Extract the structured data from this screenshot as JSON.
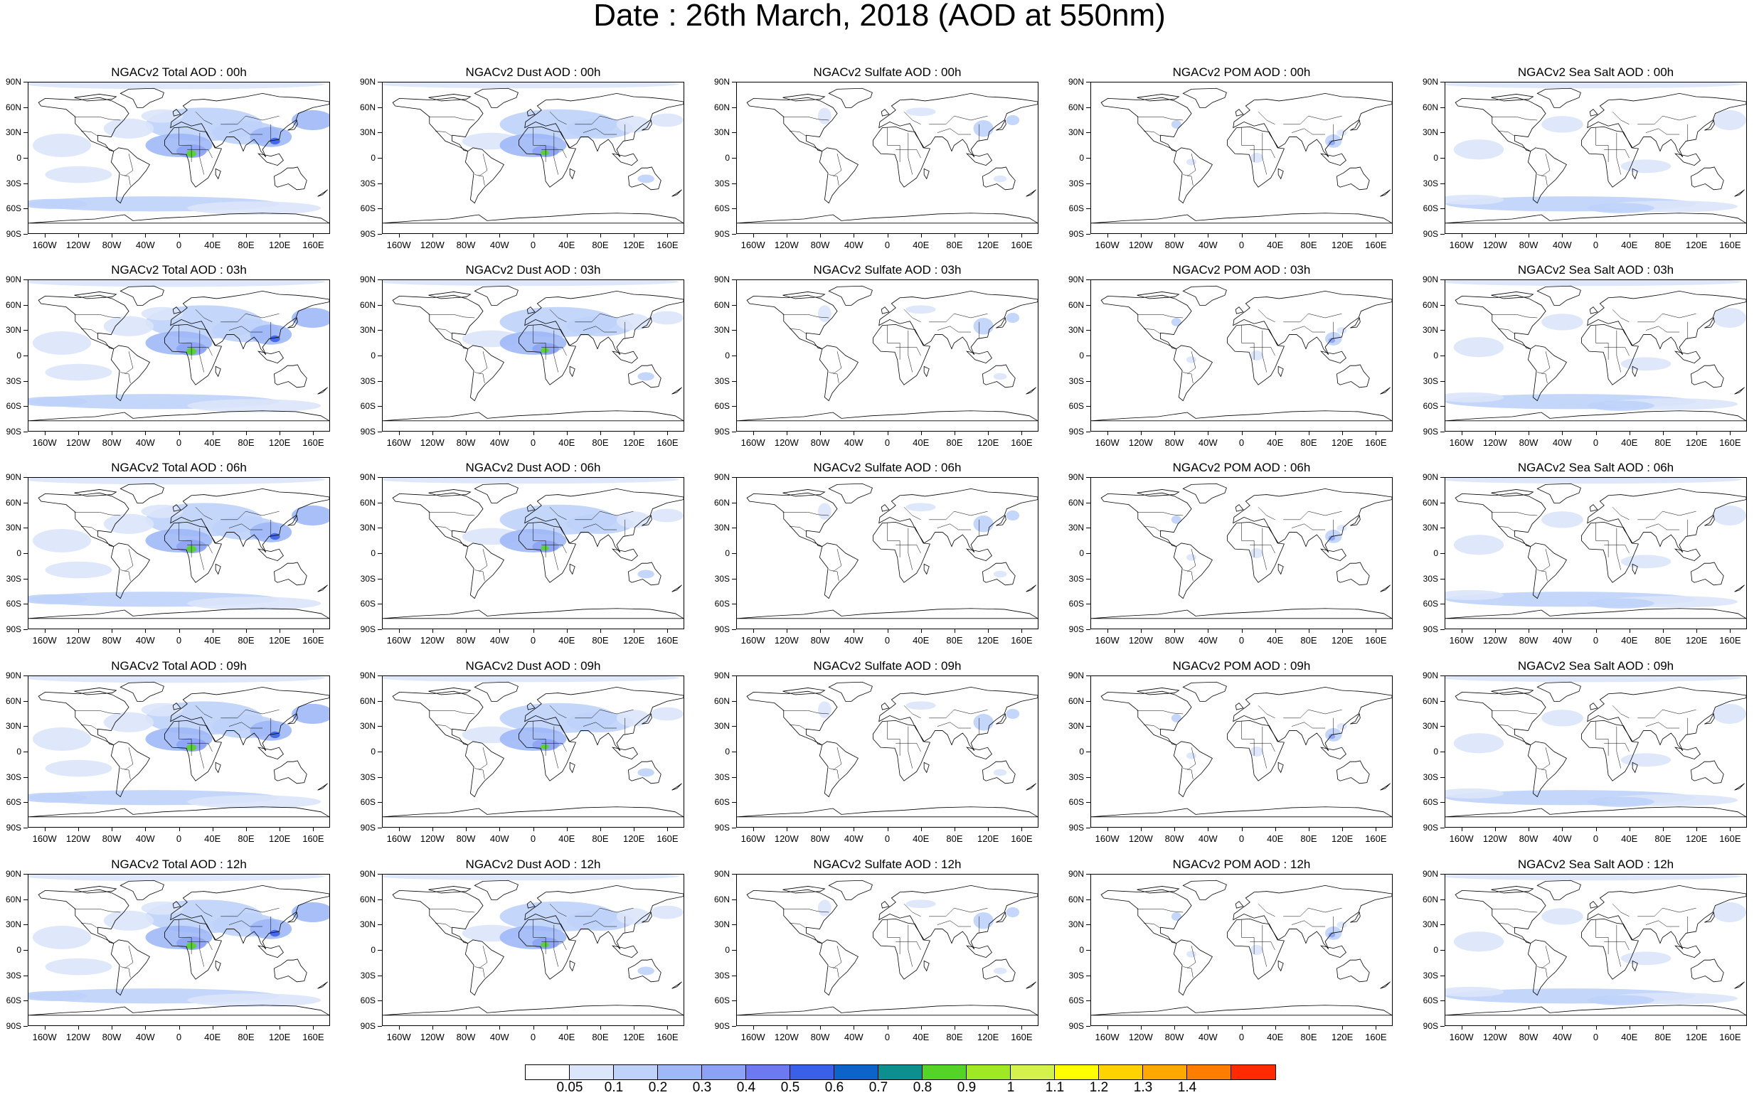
{
  "title": "Date : 26th March, 2018 (AOD at 550nm)",
  "panel_titles": [
    [
      "NGACv2 Total AOD : 00h",
      "NGACv2 Dust AOD : 00h",
      "NGACv2 Sulfate AOD : 00h",
      "NGACv2 POM AOD : 00h",
      "NGACv2 Sea Salt AOD : 00h"
    ],
    [
      "NGACv2 Total AOD : 03h",
      "NGACv2 Dust AOD : 03h",
      "NGACv2 Sulfate AOD : 03h",
      "NGACv2 POM AOD : 03h",
      "NGACv2 Sea Salt AOD : 03h"
    ],
    [
      "NGACv2 Total AOD : 06h",
      "NGACv2 Dust AOD : 06h",
      "NGACv2 Sulfate AOD : 06h",
      "NGACv2 POM AOD : 06h",
      "NGACv2 Sea Salt AOD : 06h"
    ],
    [
      "NGACv2 Total AOD : 09h",
      "NGACv2 Dust AOD : 09h",
      "NGACv2 Sulfate AOD : 09h",
      "NGACv2 POM AOD : 09h",
      "NGACv2 Sea Salt  AOD : 09h"
    ],
    [
      "NGACv2 Total AOD : 12h",
      "NGACv2 Dust AOD : 12h",
      "NGACv2 Sulfate AOD : 12h",
      "NGACv2 POM  AOD : 12h",
      "NGACv2 Sea Salt AOD : 12h"
    ]
  ],
  "species": [
    "total",
    "dust",
    "sulfate",
    "pom",
    "seasalt"
  ],
  "lat_labels": [
    "90N",
    "60N",
    "30N",
    "0",
    "30S",
    "60S",
    "90S"
  ],
  "lon_labels": [
    "160W",
    "120W",
    "80W",
    "40W",
    "0",
    "40E",
    "80E",
    "120E",
    "160E"
  ],
  "colorbar": {
    "labels": [
      "0.05",
      "0.1",
      "0.2",
      "0.3",
      "0.4",
      "0.5",
      "0.6",
      "0.7",
      "0.8",
      "0.9",
      "1",
      "1.1",
      "1.2",
      "1.3",
      "1.4"
    ],
    "colors": [
      "#ffffff",
      "#dbe6fb",
      "#bed2fa",
      "#9fb8f7",
      "#8ca2f4",
      "#6d79f0",
      "#3a5fe8",
      "#0c63c9",
      "#0e8f8f",
      "#55d428",
      "#9ee824",
      "#d4f24c",
      "#ffff00",
      "#ffd200",
      "#ffa800",
      "#ff7d00",
      "#ff2a00"
    ]
  }
}
